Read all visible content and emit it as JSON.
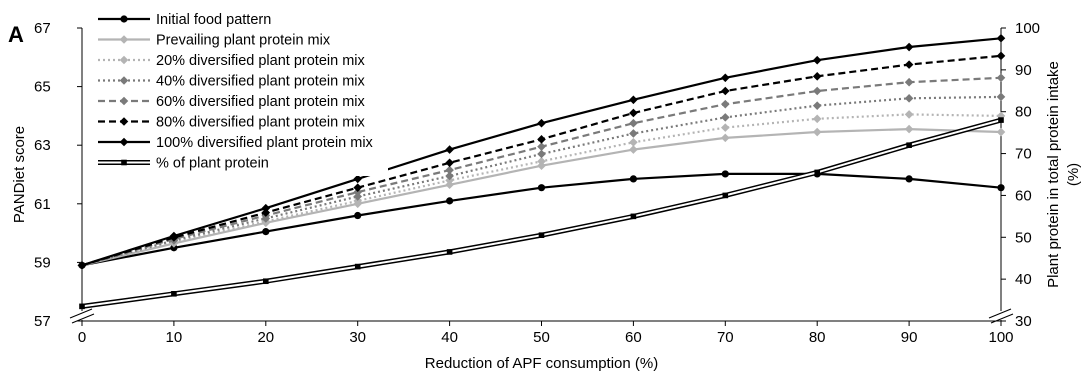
{
  "chart_data": {
    "type": "line",
    "panel_label": "A",
    "xlabel": "Reduction of APF consumption (%)",
    "ylabel": "PANDiet score",
    "y2label_lines": [
      "Plant protein in total protein intake",
      "(%)"
    ],
    "x": [
      0,
      10,
      20,
      30,
      40,
      50,
      60,
      70,
      80,
      90,
      100
    ],
    "x_ticks": [
      "0",
      "10",
      "20",
      "30",
      "40",
      "50",
      "60",
      "70",
      "80",
      "90",
      "100"
    ],
    "xlim": [
      0,
      100
    ],
    "ylim": [
      57,
      67
    ],
    "y_ticks": [
      "57",
      "59",
      "61",
      "63",
      "65",
      "67"
    ],
    "y2lim": [
      30,
      100
    ],
    "y2_ticks": [
      "30",
      "40",
      "50",
      "60",
      "70",
      "80",
      "90",
      "100"
    ],
    "axis_breaks": true,
    "grid": false,
    "legend_position": "top-left",
    "series": [
      {
        "name": "Initial food pattern",
        "axis": "left",
        "color": "#000000",
        "dash": "solid",
        "marker": "circle",
        "values": [
          58.9,
          59.5,
          60.05,
          60.6,
          61.1,
          61.55,
          61.85,
          62.02,
          62.02,
          61.85,
          61.55
        ]
      },
      {
        "name": "Prevailing plant protein mix",
        "axis": "left",
        "color": "#b4b4b4",
        "dash": "solid",
        "marker": "diamond",
        "values": [
          58.9,
          59.65,
          60.35,
          61.0,
          61.65,
          62.3,
          62.85,
          63.25,
          63.45,
          63.55,
          63.45
        ]
      },
      {
        "name": "20% diversified plant protein mix",
        "axis": "left",
        "color": "#b4b4b4",
        "dash": "dotted",
        "marker": "diamond",
        "values": [
          58.9,
          59.7,
          60.4,
          61.1,
          61.8,
          62.45,
          63.1,
          63.6,
          63.9,
          64.05,
          64.0
        ]
      },
      {
        "name": "40% diversified plant protein mix",
        "axis": "left",
        "color": "#7a7a7a",
        "dash": "dotted",
        "marker": "diamond",
        "values": [
          58.9,
          59.75,
          60.5,
          61.25,
          61.95,
          62.7,
          63.4,
          63.95,
          64.35,
          64.6,
          64.65
        ]
      },
      {
        "name": "60% diversified plant protein mix",
        "axis": "left",
        "color": "#7a7a7a",
        "dash": "dashed",
        "marker": "diamond",
        "values": [
          58.9,
          59.8,
          60.6,
          61.4,
          62.15,
          62.95,
          63.75,
          64.4,
          64.85,
          65.15,
          65.3
        ]
      },
      {
        "name": "80% diversified plant protein mix",
        "axis": "left",
        "color": "#000000",
        "dash": "dashed",
        "marker": "diamond",
        "values": [
          58.9,
          59.85,
          60.7,
          61.55,
          62.4,
          63.2,
          64.1,
          64.85,
          65.35,
          65.75,
          66.05
        ]
      },
      {
        "name": "100% diversified plant protein mix",
        "axis": "left",
        "color": "#000000",
        "dash": "solid",
        "marker": "diamond",
        "values": [
          58.9,
          59.9,
          60.85,
          61.85,
          62.85,
          63.75,
          64.55,
          65.3,
          65.9,
          66.35,
          66.65
        ]
      },
      {
        "name": "% of plant protein",
        "axis": "right",
        "color": "#000000",
        "dash": "double",
        "marker": "square",
        "values": [
          33.5,
          36.5,
          39.5,
          43.0,
          46.5,
          50.5,
          55.0,
          60.0,
          65.5,
          72.0,
          78.0
        ]
      }
    ]
  }
}
